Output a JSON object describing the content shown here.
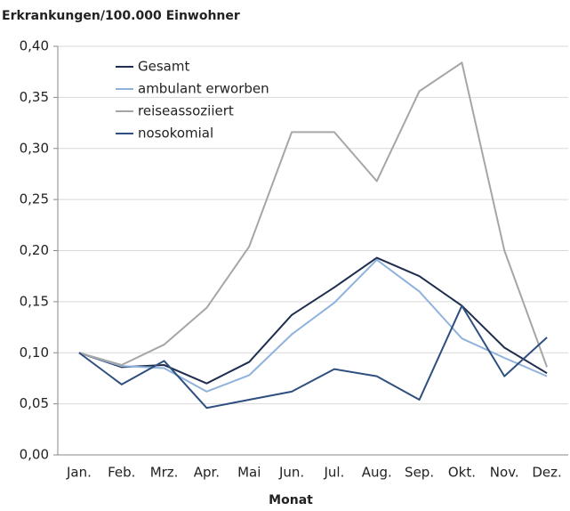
{
  "chart_data": {
    "type": "line",
    "ylabel": "Erkrankungen/100.000 Einwohner",
    "xlabel": "Monat",
    "categories": [
      "Jan.",
      "Feb.",
      "Mrz.",
      "Apr.",
      "Mai",
      "Jun.",
      "Jul.",
      "Aug.",
      "Sep.",
      "Okt.",
      "Nov.",
      "Dez."
    ],
    "series": [
      {
        "name": "Gesamt",
        "color": "#1f2d4e",
        "values": [
          0.1,
          0.086,
          0.088,
          0.07,
          0.091,
          0.137,
          0.164,
          0.193,
          0.175,
          0.146,
          0.105,
          0.08
        ]
      },
      {
        "name": "ambulant erworben",
        "color": "#8fb3dc",
        "values": [
          0.1,
          0.087,
          0.085,
          0.062,
          0.078,
          0.118,
          0.149,
          0.191,
          0.16,
          0.114,
          0.095,
          0.077
        ]
      },
      {
        "name": "reiseassoziiert",
        "color": "#a6a6a6",
        "values": [
          0.1,
          0.088,
          0.108,
          0.144,
          0.204,
          0.316,
          0.316,
          0.268,
          0.356,
          0.384,
          0.2,
          0.086
        ]
      },
      {
        "name": "nosokomial",
        "color": "#2e4f7f",
        "values": [
          0.1,
          0.069,
          0.092,
          0.046,
          0.054,
          0.062,
          0.084,
          0.077,
          0.054,
          0.146,
          0.077,
          0.115
        ]
      }
    ],
    "ylim": [
      0,
      0.4
    ],
    "yticks": [
      {
        "value": 0,
        "label": "0,00"
      },
      {
        "value": 0.05,
        "label": "0,05"
      },
      {
        "value": 0.1,
        "label": "0,10"
      },
      {
        "value": 0.15,
        "label": "0,15"
      },
      {
        "value": 0.2,
        "label": "0,20"
      },
      {
        "value": 0.25,
        "label": "0,25"
      },
      {
        "value": 0.3,
        "label": "0,30"
      },
      {
        "value": 0.35,
        "label": "0,35"
      },
      {
        "value": 0.4,
        "label": "0,40"
      }
    ],
    "grid": true
  }
}
